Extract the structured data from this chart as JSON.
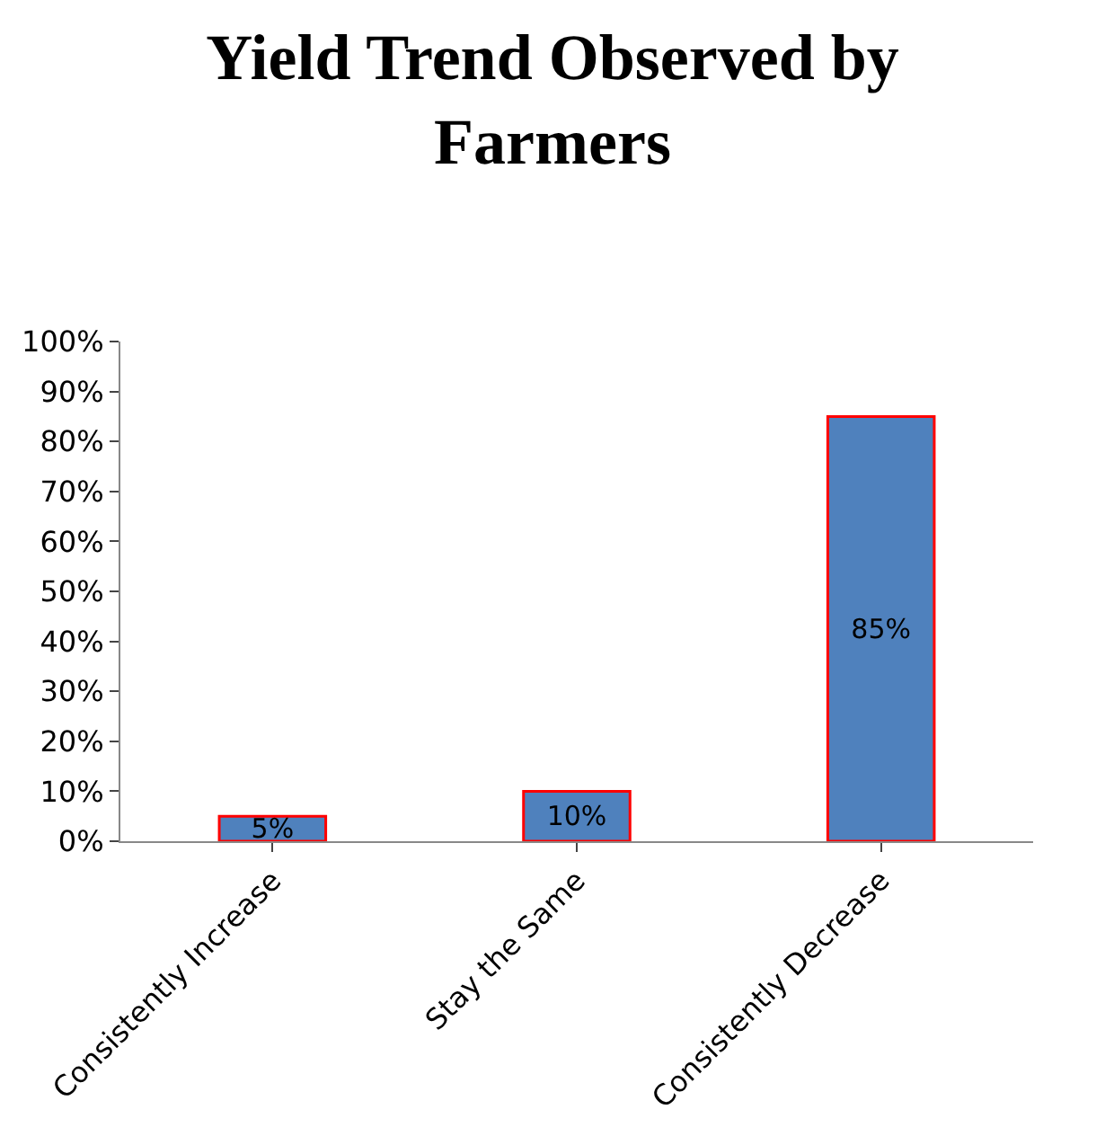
{
  "chart_data": {
    "type": "bar",
    "title": "Yield Trend Observed by Farmers",
    "categories": [
      "Consistently Increase",
      "Stay the Same",
      "Consistently Decrease"
    ],
    "values": [
      5,
      10,
      85
    ],
    "value_labels": [
      "5%",
      "10%",
      "85%"
    ],
    "color": "#4f81bd",
    "ylim": [
      0,
      100
    ],
    "yticks": [
      {
        "value": 0,
        "label": "0%"
      },
      {
        "value": 10,
        "label": "10%"
      },
      {
        "value": 20,
        "label": "20%"
      },
      {
        "value": 30,
        "label": "30%"
      },
      {
        "value": 40,
        "label": "40%"
      },
      {
        "value": 50,
        "label": "50%"
      },
      {
        "value": 60,
        "label": "60%"
      },
      {
        "value": 70,
        "label": "70%"
      },
      {
        "value": 80,
        "label": "80%"
      },
      {
        "value": 90,
        "label": "90%"
      },
      {
        "value": 100,
        "label": "100%"
      }
    ],
    "grid": false
  }
}
